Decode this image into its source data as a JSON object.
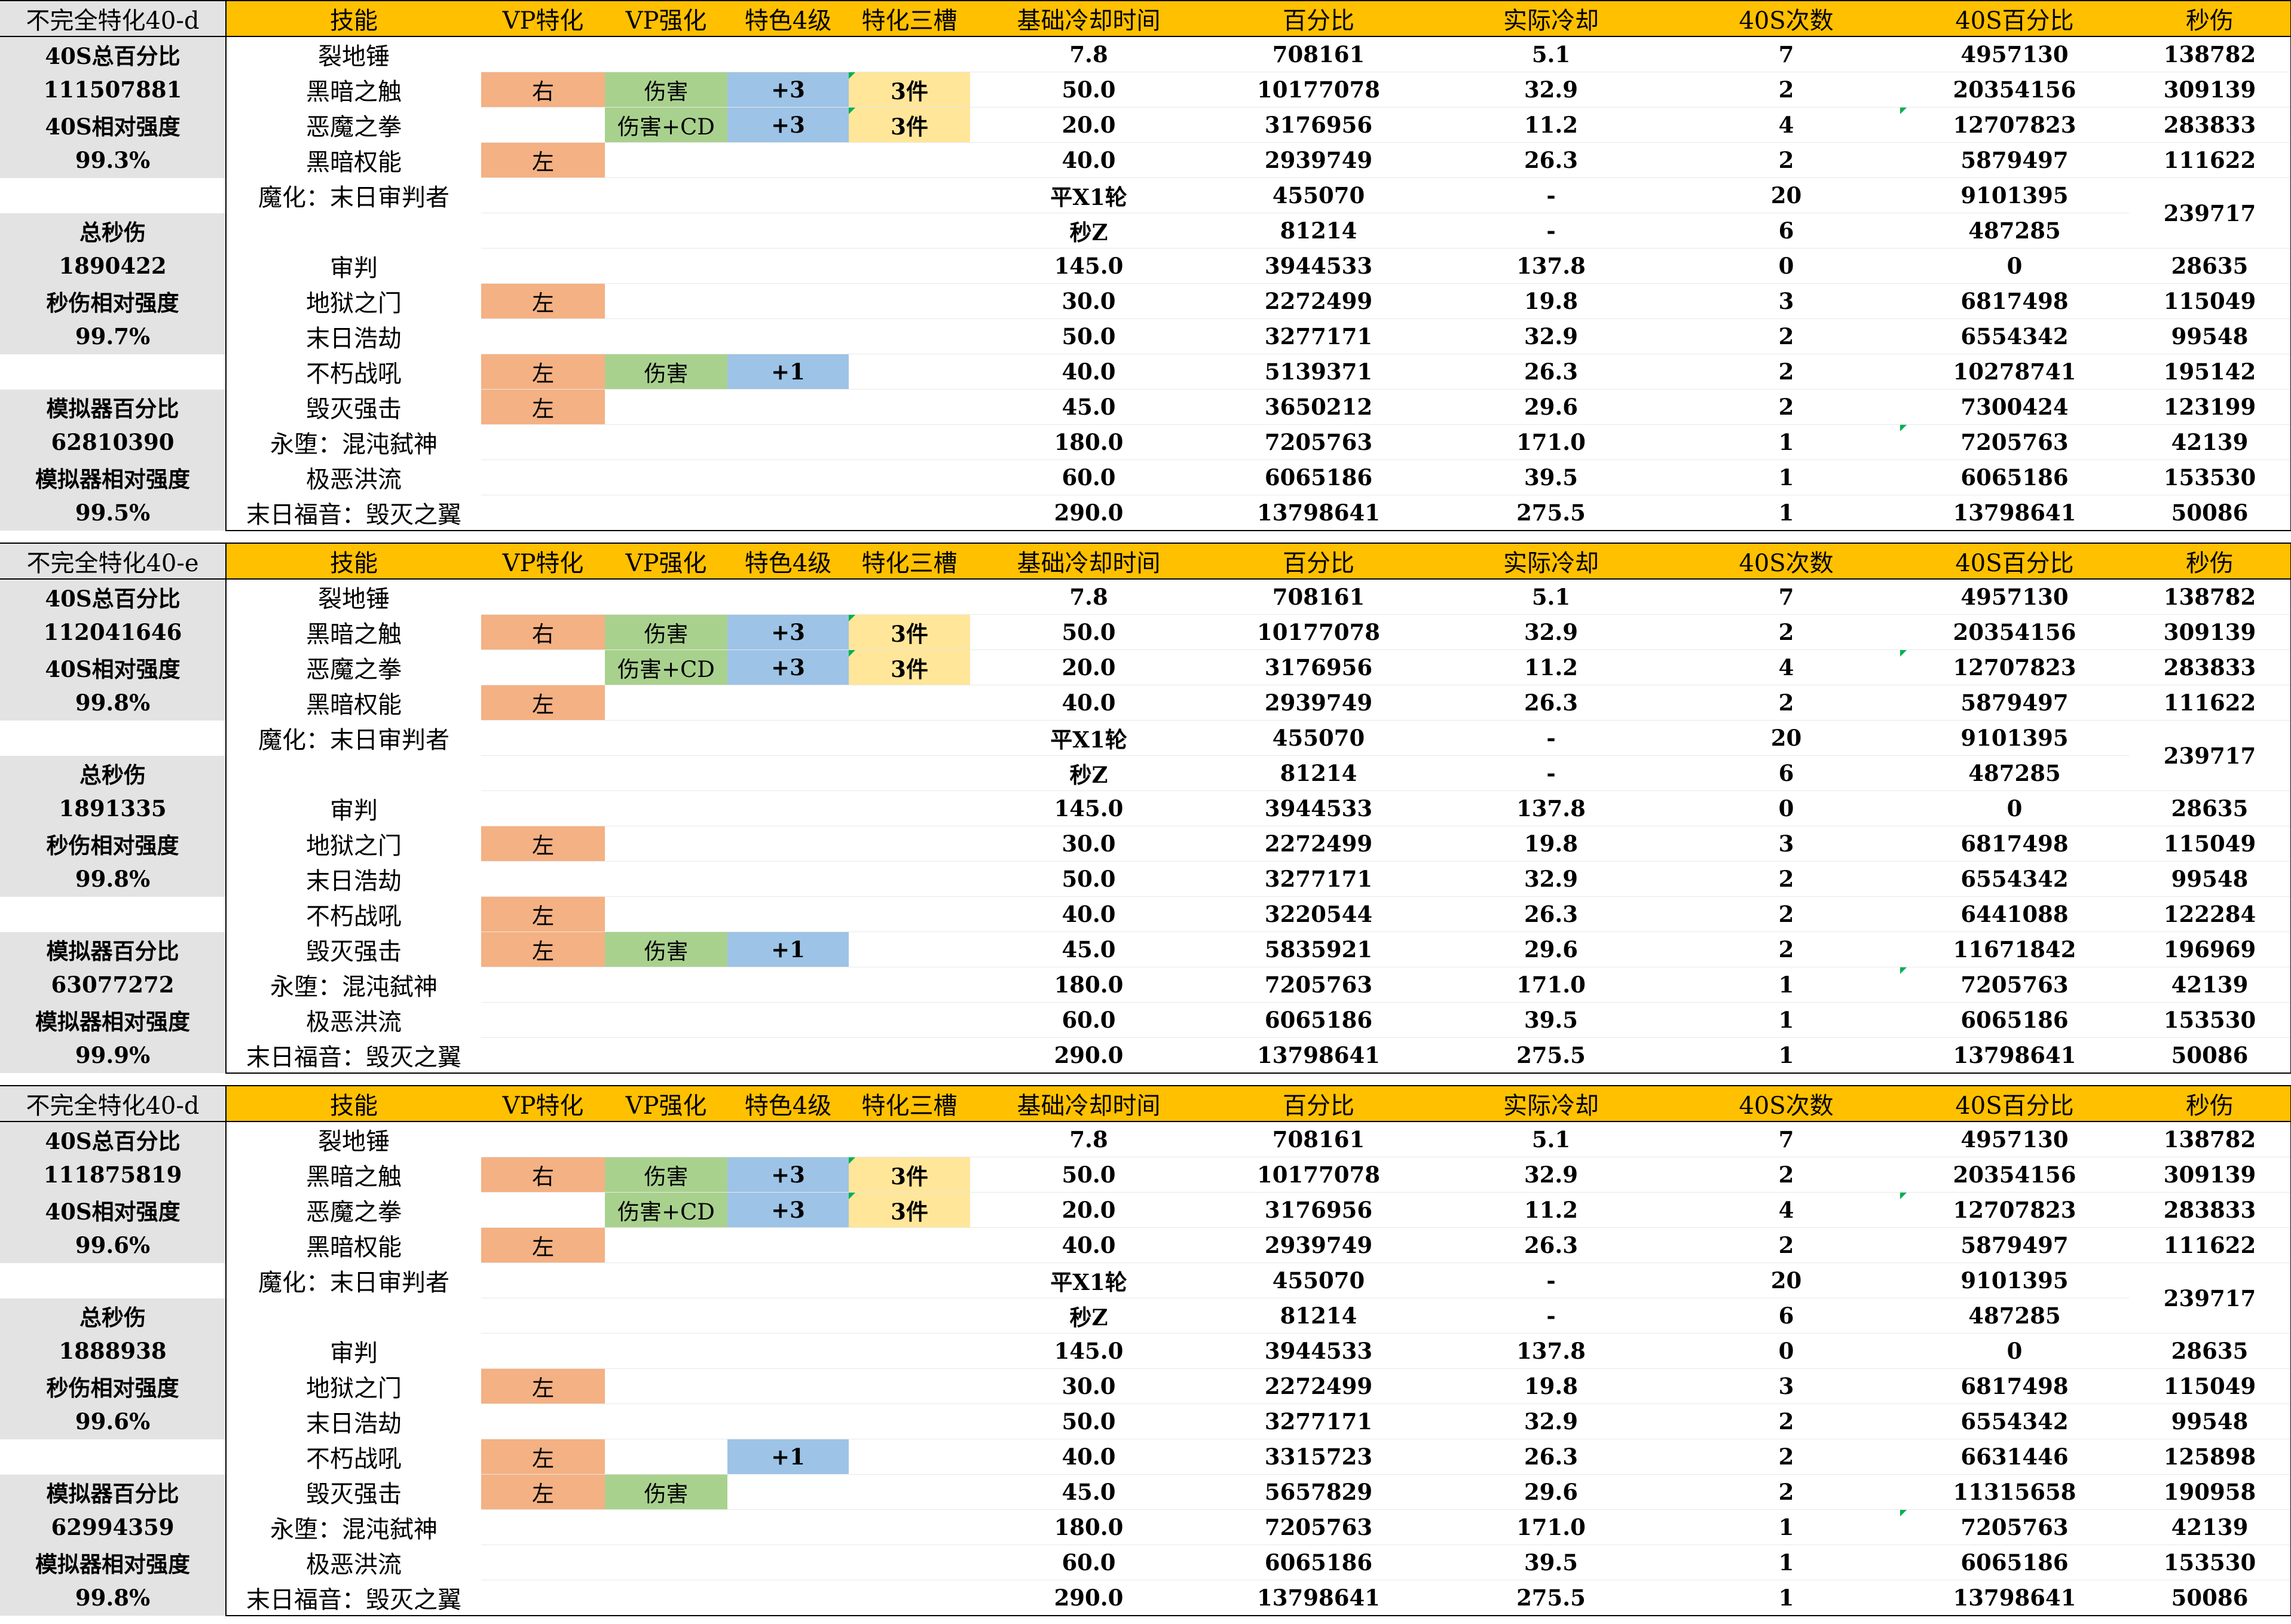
{
  "header_labels": [
    "技能",
    "VP特化",
    "VP强化",
    "特色4级",
    "特化三槽",
    "基础冷却时间",
    "百分比",
    "实际冷却",
    "40S次数",
    "40S百分比",
    "秒伤"
  ],
  "blocks": [
    {
      "title": "不完全特化40-d",
      "left": [
        "40S总百分比",
        "111507881",
        "40S相对强度",
        "99.3%",
        "",
        "总秒伤",
        "1890422",
        "秒伤相对强度",
        "99.7%",
        "",
        "模拟器百分比",
        "62810390",
        "模拟器相对强度",
        "99.5%"
      ],
      "rows": [
        {
          "skill": "裂地锤",
          "vp": "",
          "vp_enh": "",
          "lv4": "",
          "slot": "",
          "base": "7.8",
          "pct": "708161",
          "actual": "5.1",
          "count": "7",
          "pct40": "4957130",
          "dps": "138782"
        },
        {
          "skill": "黑暗之触",
          "vp": "右",
          "vp_enh": "伤害",
          "lv4": "+3",
          "slot": "3件",
          "base": "50.0",
          "pct": "10177078",
          "actual": "32.9",
          "count": "2",
          "pct40": "20354156",
          "dps": "309139"
        },
        {
          "skill": "恶魔之拳",
          "vp": "",
          "vp_enh": "伤害+CD",
          "lv4": "+3",
          "slot": "3件",
          "base": "20.0",
          "pct": "3176956",
          "actual": "11.2",
          "count": "4",
          "pct40": "12707823",
          "dps": "283833"
        },
        {
          "skill": "黑暗权能",
          "vp": "左",
          "vp_enh": "",
          "lv4": "",
          "slot": "",
          "base": "40.0",
          "pct": "2939749",
          "actual": "26.3",
          "count": "2",
          "pct40": "5879497",
          "dps": "111622"
        },
        {
          "skill": "魔化：末日审判者",
          "vp": "",
          "vp_enh": "",
          "lv4": "",
          "slot": "",
          "base": "平X1轮",
          "pct": "455070",
          "actual": "-",
          "count": "20",
          "pct40": "9101395",
          "dps": "239717"
        },
        {
          "skill": "",
          "vp": "",
          "vp_enh": "",
          "lv4": "",
          "slot": "",
          "base": "秒Z",
          "pct": "81214",
          "actual": "-",
          "count": "6",
          "pct40": "487285",
          "dps": ""
        },
        {
          "skill": "审判",
          "vp": "",
          "vp_enh": "",
          "lv4": "",
          "slot": "",
          "base": "145.0",
          "pct": "3944533",
          "actual": "137.8",
          "count": "0",
          "pct40": "0",
          "dps": "28635"
        },
        {
          "skill": "地狱之门",
          "vp": "左",
          "vp_enh": "",
          "lv4": "",
          "slot": "",
          "base": "30.0",
          "pct": "2272499",
          "actual": "19.8",
          "count": "3",
          "pct40": "6817498",
          "dps": "115049"
        },
        {
          "skill": "末日浩劫",
          "vp": "",
          "vp_enh": "",
          "lv4": "",
          "slot": "",
          "base": "50.0",
          "pct": "3277171",
          "actual": "32.9",
          "count": "2",
          "pct40": "6554342",
          "dps": "99548"
        },
        {
          "skill": "不朽战吼",
          "vp": "左",
          "vp_enh": "伤害",
          "lv4": "+1",
          "slot": "",
          "base": "40.0",
          "pct": "5139371",
          "actual": "26.3",
          "count": "2",
          "pct40": "10278741",
          "dps": "195142"
        },
        {
          "skill": "毁灭强击",
          "vp": "左",
          "vp_enh": "",
          "lv4": "",
          "slot": "",
          "base": "45.0",
          "pct": "3650212",
          "actual": "29.6",
          "count": "2",
          "pct40": "7300424",
          "dps": "123199"
        },
        {
          "skill": "永堕：混沌弑神",
          "vp": "",
          "vp_enh": "",
          "lv4": "",
          "slot": "",
          "base": "180.0",
          "pct": "7205763",
          "actual": "171.0",
          "count": "1",
          "pct40": "7205763",
          "dps": "42139"
        },
        {
          "skill": "极恶洪流",
          "vp": "",
          "vp_enh": "",
          "lv4": "",
          "slot": "",
          "base": "60.0",
          "pct": "6065186",
          "actual": "39.5",
          "count": "1",
          "pct40": "6065186",
          "dps": "153530"
        },
        {
          "skill": "末日福音：毁灭之翼",
          "vp": "",
          "vp_enh": "",
          "lv4": "",
          "slot": "",
          "base": "290.0",
          "pct": "13798641",
          "actual": "275.5",
          "count": "1",
          "pct40": "13798641",
          "dps": "50086"
        }
      ]
    },
    {
      "title": "不完全特化40-e",
      "left": [
        "40S总百分比",
        "112041646",
        "40S相对强度",
        "99.8%",
        "",
        "总秒伤",
        "1891335",
        "秒伤相对强度",
        "99.8%",
        "",
        "模拟器百分比",
        "63077272",
        "模拟器相对强度",
        "99.9%"
      ],
      "rows": [
        {
          "skill": "裂地锤",
          "vp": "",
          "vp_enh": "",
          "lv4": "",
          "slot": "",
          "base": "7.8",
          "pct": "708161",
          "actual": "5.1",
          "count": "7",
          "pct40": "4957130",
          "dps": "138782"
        },
        {
          "skill": "黑暗之触",
          "vp": "右",
          "vp_enh": "伤害",
          "lv4": "+3",
          "slot": "3件",
          "base": "50.0",
          "pct": "10177078",
          "actual": "32.9",
          "count": "2",
          "pct40": "20354156",
          "dps": "309139"
        },
        {
          "skill": "恶魔之拳",
          "vp": "",
          "vp_enh": "伤害+CD",
          "lv4": "+3",
          "slot": "3件",
          "base": "20.0",
          "pct": "3176956",
          "actual": "11.2",
          "count": "4",
          "pct40": "12707823",
          "dps": "283833"
        },
        {
          "skill": "黑暗权能",
          "vp": "左",
          "vp_enh": "",
          "lv4": "",
          "slot": "",
          "base": "40.0",
          "pct": "2939749",
          "actual": "26.3",
          "count": "2",
          "pct40": "5879497",
          "dps": "111622"
        },
        {
          "skill": "魔化：末日审判者",
          "vp": "",
          "vp_enh": "",
          "lv4": "",
          "slot": "",
          "base": "平X1轮",
          "pct": "455070",
          "actual": "-",
          "count": "20",
          "pct40": "9101395",
          "dps": "239717"
        },
        {
          "skill": "",
          "vp": "",
          "vp_enh": "",
          "lv4": "",
          "slot": "",
          "base": "秒Z",
          "pct": "81214",
          "actual": "-",
          "count": "6",
          "pct40": "487285",
          "dps": ""
        },
        {
          "skill": "审判",
          "vp": "",
          "vp_enh": "",
          "lv4": "",
          "slot": "",
          "base": "145.0",
          "pct": "3944533",
          "actual": "137.8",
          "count": "0",
          "pct40": "0",
          "dps": "28635"
        },
        {
          "skill": "地狱之门",
          "vp": "左",
          "vp_enh": "",
          "lv4": "",
          "slot": "",
          "base": "30.0",
          "pct": "2272499",
          "actual": "19.8",
          "count": "3",
          "pct40": "6817498",
          "dps": "115049"
        },
        {
          "skill": "末日浩劫",
          "vp": "",
          "vp_enh": "",
          "lv4": "",
          "slot": "",
          "base": "50.0",
          "pct": "3277171",
          "actual": "32.9",
          "count": "2",
          "pct40": "6554342",
          "dps": "99548"
        },
        {
          "skill": "不朽战吼",
          "vp": "左",
          "vp_enh": "",
          "lv4": "",
          "slot": "",
          "base": "40.0",
          "pct": "3220544",
          "actual": "26.3",
          "count": "2",
          "pct40": "6441088",
          "dps": "122284"
        },
        {
          "skill": "毁灭强击",
          "vp": "左",
          "vp_enh": "伤害",
          "lv4": "+1",
          "slot": "",
          "base": "45.0",
          "pct": "5835921",
          "actual": "29.6",
          "count": "2",
          "pct40": "11671842",
          "dps": "196969"
        },
        {
          "skill": "永堕：混沌弑神",
          "vp": "",
          "vp_enh": "",
          "lv4": "",
          "slot": "",
          "base": "180.0",
          "pct": "7205763",
          "actual": "171.0",
          "count": "1",
          "pct40": "7205763",
          "dps": "42139"
        },
        {
          "skill": "极恶洪流",
          "vp": "",
          "vp_enh": "",
          "lv4": "",
          "slot": "",
          "base": "60.0",
          "pct": "6065186",
          "actual": "39.5",
          "count": "1",
          "pct40": "6065186",
          "dps": "153530"
        },
        {
          "skill": "末日福音：毁灭之翼",
          "vp": "",
          "vp_enh": "",
          "lv4": "",
          "slot": "",
          "base": "290.0",
          "pct": "13798641",
          "actual": "275.5",
          "count": "1",
          "pct40": "13798641",
          "dps": "50086"
        }
      ]
    },
    {
      "title": "不完全特化40-d",
      "left": [
        "40S总百分比",
        "111875819",
        "40S相对强度",
        "99.6%",
        "",
        "总秒伤",
        "1888938",
        "秒伤相对强度",
        "99.6%",
        "",
        "模拟器百分比",
        "62994359",
        "模拟器相对强度",
        "99.8%"
      ],
      "rows": [
        {
          "skill": "裂地锤",
          "vp": "",
          "vp_enh": "",
          "lv4": "",
          "slot": "",
          "base": "7.8",
          "pct": "708161",
          "actual": "5.1",
          "count": "7",
          "pct40": "4957130",
          "dps": "138782"
        },
        {
          "skill": "黑暗之触",
          "vp": "右",
          "vp_enh": "伤害",
          "lv4": "+3",
          "slot": "3件",
          "base": "50.0",
          "pct": "10177078",
          "actual": "32.9",
          "count": "2",
          "pct40": "20354156",
          "dps": "309139"
        },
        {
          "skill": "恶魔之拳",
          "vp": "",
          "vp_enh": "伤害+CD",
          "lv4": "+3",
          "slot": "3件",
          "base": "20.0",
          "pct": "3176956",
          "actual": "11.2",
          "count": "4",
          "pct40": "12707823",
          "dps": "283833"
        },
        {
          "skill": "黑暗权能",
          "vp": "左",
          "vp_enh": "",
          "lv4": "",
          "slot": "",
          "base": "40.0",
          "pct": "2939749",
          "actual": "26.3",
          "count": "2",
          "pct40": "5879497",
          "dps": "111622"
        },
        {
          "skill": "魔化：末日审判者",
          "vp": "",
          "vp_enh": "",
          "lv4": "",
          "slot": "",
          "base": "平X1轮",
          "pct": "455070",
          "actual": "-",
          "count": "20",
          "pct40": "9101395",
          "dps": "239717"
        },
        {
          "skill": "",
          "vp": "",
          "vp_enh": "",
          "lv4": "",
          "slot": "",
          "base": "秒Z",
          "pct": "81214",
          "actual": "-",
          "count": "6",
          "pct40": "487285",
          "dps": ""
        },
        {
          "skill": "审判",
          "vp": "",
          "vp_enh": "",
          "lv4": "",
          "slot": "",
          "base": "145.0",
          "pct": "3944533",
          "actual": "137.8",
          "count": "0",
          "pct40": "0",
          "dps": "28635"
        },
        {
          "skill": "地狱之门",
          "vp": "左",
          "vp_enh": "",
          "lv4": "",
          "slot": "",
          "base": "30.0",
          "pct": "2272499",
          "actual": "19.8",
          "count": "3",
          "pct40": "6817498",
          "dps": "115049"
        },
        {
          "skill": "末日浩劫",
          "vp": "",
          "vp_enh": "",
          "lv4": "",
          "slot": "",
          "base": "50.0",
          "pct": "3277171",
          "actual": "32.9",
          "count": "2",
          "pct40": "6554342",
          "dps": "99548"
        },
        {
          "skill": "不朽战吼",
          "vp": "左",
          "vp_enh": "",
          "lv4": "+1",
          "slot": "",
          "base": "40.0",
          "pct": "3315723",
          "actual": "26.3",
          "count": "2",
          "pct40": "6631446",
          "dps": "125898"
        },
        {
          "skill": "毁灭强击",
          "vp": "左",
          "vp_enh": "伤害",
          "lv4": "",
          "slot": "",
          "base": "45.0",
          "pct": "5657829",
          "actual": "29.6",
          "count": "2",
          "pct40": "11315658",
          "dps": "190958"
        },
        {
          "skill": "永堕：混沌弑神",
          "vp": "",
          "vp_enh": "",
          "lv4": "",
          "slot": "",
          "base": "180.0",
          "pct": "7205763",
          "actual": "171.0",
          "count": "1",
          "pct40": "7205763",
          "dps": "42139"
        },
        {
          "skill": "极恶洪流",
          "vp": "",
          "vp_enh": "",
          "lv4": "",
          "slot": "",
          "base": "60.0",
          "pct": "6065186",
          "actual": "39.5",
          "count": "1",
          "pct40": "6065186",
          "dps": "153530"
        },
        {
          "skill": "末日福音：毁灭之翼",
          "vp": "",
          "vp_enh": "",
          "lv4": "",
          "slot": "",
          "base": "290.0",
          "pct": "13798641",
          "actual": "275.5",
          "count": "1",
          "pct40": "13798641",
          "dps": "50086"
        }
      ]
    }
  ],
  "colors": {
    "header": "#ffc000",
    "label_grey": "#e3e3e3",
    "vp_side": "#f4b183",
    "vp_enh": "#a9d18e",
    "lv4": "#9dc3e6",
    "slot": "#ffe699",
    "note_marker": "#00b050"
  }
}
